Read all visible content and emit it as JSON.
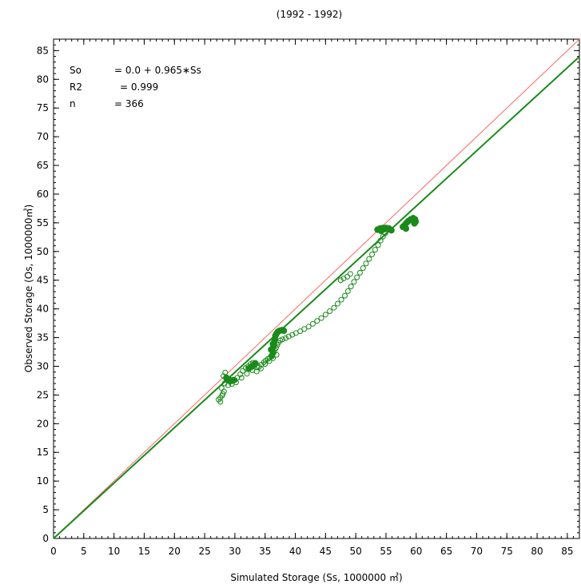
{
  "chart_data": {
    "type": "scatter",
    "title": "(1992 - 1992)",
    "xlabel": "Simulated Storage (Ss, 1000000 ㎥)",
    "ylabel": "Observed Storage (Os, 1000000㎥)",
    "xlim": [
      0,
      87
    ],
    "ylim": [
      0,
      87
    ],
    "xticks": [
      0,
      5,
      10,
      15,
      20,
      25,
      30,
      35,
      40,
      45,
      50,
      55,
      60,
      65,
      70,
      75,
      80,
      85
    ],
    "yticks": [
      0,
      5,
      10,
      15,
      20,
      25,
      30,
      35,
      40,
      45,
      50,
      55,
      60,
      65,
      70,
      75,
      80,
      85
    ],
    "minor_tick_step": 1,
    "grid": false,
    "colors": {
      "points": "#1a8a1a",
      "fit_line": "#1a8a1a",
      "one_to_one": "#ff6666",
      "axes": "#000000"
    },
    "stats": {
      "so_label": "So",
      "so_value": "= 0.0 + 0.965∗Ss",
      "r2_label": "R2",
      "r2_value": "= 0.999",
      "n_label": "n",
      "n_value": "= 366"
    },
    "lines": [
      {
        "name": "",
        "kind": "one_to_one",
        "intercept": 0.0,
        "slope": 1.0
      },
      {
        "name": "",
        "kind": "regression",
        "intercept": 0.0,
        "slope": 0.965
      }
    ],
    "series": [
      {
        "name": "",
        "marker": "open-circle",
        "points": [
          [
            27.3,
            24.2
          ],
          [
            27.6,
            24.5
          ],
          [
            27.9,
            24.9
          ],
          [
            28.2,
            25.6
          ],
          [
            27.8,
            26.2
          ],
          [
            28.3,
            27.0
          ],
          [
            28.6,
            27.6
          ],
          [
            28.1,
            28.3
          ],
          [
            28.4,
            28.9
          ],
          [
            28.8,
            27.6
          ],
          [
            29.2,
            27.3
          ],
          [
            29.6,
            27.4
          ],
          [
            30.0,
            27.6
          ],
          [
            30.4,
            28.0
          ],
          [
            30.9,
            28.6
          ],
          [
            31.3,
            29.2
          ],
          [
            31.8,
            29.7
          ],
          [
            32.2,
            30.0
          ],
          [
            32.6,
            30.4
          ],
          [
            33.0,
            30.6
          ],
          [
            33.3,
            30.2
          ],
          [
            33.7,
            29.8
          ],
          [
            34.0,
            29.9
          ],
          [
            34.4,
            30.3
          ],
          [
            34.8,
            30.7
          ],
          [
            35.1,
            31.0
          ],
          [
            35.5,
            31.3
          ],
          [
            35.8,
            31.5
          ],
          [
            36.1,
            31.9
          ],
          [
            36.4,
            32.3
          ],
          [
            36.6,
            32.8
          ],
          [
            36.8,
            33.2
          ],
          [
            37.0,
            33.7
          ],
          [
            37.2,
            34.1
          ],
          [
            37.5,
            34.5
          ],
          [
            37.9,
            34.7
          ],
          [
            38.4,
            34.9
          ],
          [
            38.9,
            35.2
          ],
          [
            39.5,
            35.5
          ],
          [
            40.1,
            35.8
          ],
          [
            40.8,
            36.1
          ],
          [
            41.5,
            36.5
          ],
          [
            42.2,
            36.9
          ],
          [
            42.9,
            37.4
          ],
          [
            43.6,
            37.9
          ],
          [
            44.3,
            38.4
          ],
          [
            45.0,
            39.0
          ],
          [
            45.7,
            39.6
          ],
          [
            46.4,
            40.2
          ],
          [
            47.0,
            40.9
          ],
          [
            47.6,
            41.6
          ],
          [
            48.2,
            42.3
          ],
          [
            48.7,
            43.1
          ],
          [
            49.2,
            43.9
          ],
          [
            49.7,
            44.7
          ],
          [
            50.2,
            45.5
          ],
          [
            50.7,
            46.3
          ],
          [
            51.2,
            47.1
          ],
          [
            51.7,
            47.9
          ],
          [
            52.2,
            48.7
          ],
          [
            52.7,
            49.5
          ],
          [
            53.2,
            50.3
          ],
          [
            53.7,
            51.1
          ],
          [
            54.1,
            51.9
          ],
          [
            54.5,
            52.6
          ],
          [
            54.9,
            53.2
          ],
          [
            27.6,
            23.8
          ],
          [
            28.0,
            25.2
          ],
          [
            28.9,
            26.7
          ],
          [
            29.5,
            26.9
          ],
          [
            30.2,
            27.2
          ],
          [
            31.1,
            28.0
          ],
          [
            32.0,
            28.7
          ],
          [
            32.9,
            29.3
          ],
          [
            33.6,
            29.1
          ],
          [
            34.3,
            29.6
          ],
          [
            35.0,
            30.4
          ],
          [
            35.7,
            30.9
          ],
          [
            36.3,
            31.4
          ],
          [
            36.9,
            32.0
          ],
          [
            47.5,
            45.0
          ],
          [
            48.0,
            45.3
          ],
          [
            48.6,
            45.6
          ],
          [
            49.1,
            46.1
          ]
        ]
      },
      {
        "name": "",
        "marker": "filled-circle",
        "points": [
          [
            28.6,
            28.0
          ],
          [
            29.0,
            27.7
          ],
          [
            29.4,
            27.5
          ],
          [
            29.8,
            27.6
          ],
          [
            32.3,
            29.6
          ],
          [
            32.7,
            29.9
          ],
          [
            33.1,
            30.2
          ],
          [
            33.4,
            30.5
          ],
          [
            36.2,
            33.0
          ],
          [
            36.4,
            33.6
          ],
          [
            36.5,
            34.2
          ],
          [
            36.6,
            34.8
          ],
          [
            36.7,
            35.3
          ],
          [
            36.9,
            35.7
          ],
          [
            37.1,
            36.0
          ],
          [
            37.4,
            36.2
          ],
          [
            37.8,
            36.3
          ],
          [
            38.1,
            36.2
          ],
          [
            36.3,
            32.4
          ],
          [
            36.1,
            31.8
          ],
          [
            36.0,
            32.9
          ],
          [
            36.3,
            33.9
          ],
          [
            53.6,
            53.8
          ],
          [
            54.0,
            54.0
          ],
          [
            54.5,
            54.1
          ],
          [
            55.0,
            54.1
          ],
          [
            55.5,
            54.0
          ],
          [
            55.9,
            53.7
          ],
          [
            54.2,
            53.6
          ],
          [
            54.8,
            53.9
          ],
          [
            57.8,
            54.3
          ],
          [
            58.1,
            54.6
          ],
          [
            58.4,
            55.0
          ],
          [
            58.7,
            55.3
          ],
          [
            59.1,
            55.6
          ],
          [
            59.5,
            55.8
          ],
          [
            59.8,
            55.6
          ],
          [
            59.9,
            55.2
          ],
          [
            59.7,
            54.9
          ],
          [
            58.3,
            54.0
          ]
        ]
      }
    ]
  }
}
